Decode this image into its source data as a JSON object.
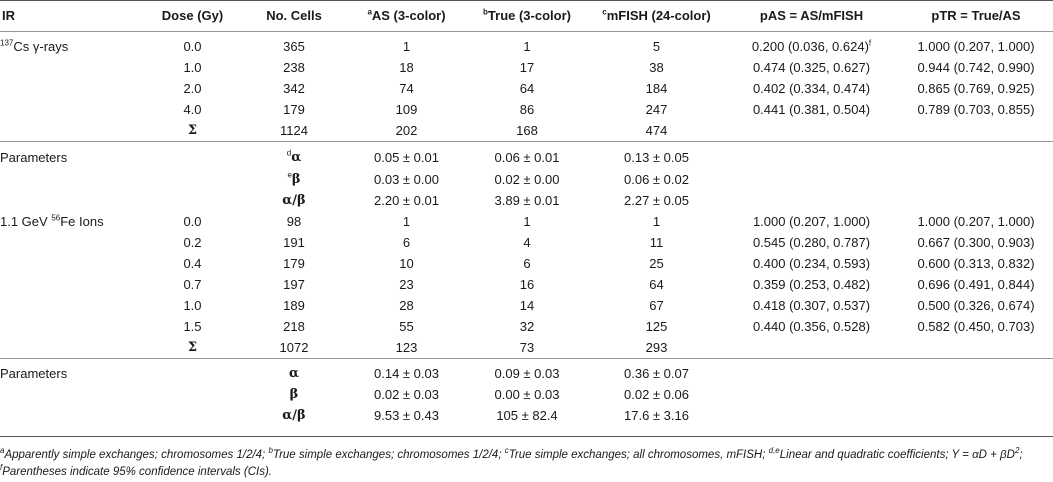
{
  "headers": {
    "ir": "IR",
    "dose": "Dose (Gy)",
    "cells": "No. Cells",
    "as": {
      "sup": "a",
      "label": "AS (3-color)"
    },
    "true": {
      "sup": "b",
      "label": "True (3-color)"
    },
    "mfish": {
      "sup": "c",
      "label": "mFISH (24-color)"
    },
    "pas": "pAS = AS/mFISH",
    "ptr": "pTR = True/AS"
  },
  "cs_block": {
    "label_sup": "137",
    "label": "Cs γ-rays",
    "rows": [
      {
        "dose": "0.0",
        "cells": "365",
        "as": "1",
        "true": "1",
        "mfish": "5",
        "pas": "0.200 (0.036, 0.624)",
        "pas_sup": "f",
        "ptr": "1.000 (0.207, 1.000)"
      },
      {
        "dose": "1.0",
        "cells": "238",
        "as": "18",
        "true": "17",
        "mfish": "38",
        "pas": "0.474 (0.325, 0.627)",
        "pas_sup": "",
        "ptr": "0.944 (0.742, 0.990)"
      },
      {
        "dose": "2.0",
        "cells": "342",
        "as": "74",
        "true": "64",
        "mfish": "184",
        "pas": "0.402 (0.334, 0.474)",
        "pas_sup": "",
        "ptr": "0.865 (0.769, 0.925)"
      },
      {
        "dose": "4.0",
        "cells": "179",
        "as": "109",
        "true": "86",
        "mfish": "247",
        "pas": "0.441 (0.381, 0.504)",
        "pas_sup": "",
        "ptr": "0.789 (0.703, 0.855)"
      }
    ],
    "sum": {
      "symbol": "Σ",
      "cells": "1124",
      "as": "202",
      "true": "168",
      "mfish": "474"
    },
    "params_label": "Parameters",
    "params": [
      {
        "sup": "d",
        "symbol": "α",
        "as": "0.05 ± 0.01",
        "true": "0.06 ± 0.01",
        "mfish": "0.13 ± 0.05"
      },
      {
        "sup": "e",
        "symbol": "β",
        "as": "0.03 ± 0.00",
        "true": "0.02 ± 0.00",
        "mfish": "0.06 ± 0.02"
      },
      {
        "sup": "",
        "symbol": "α/β",
        "as": "2.20 ± 0.01",
        "true": "3.89 ± 0.01",
        "mfish": "2.27 ± 0.05"
      }
    ]
  },
  "fe_block": {
    "label_pre": "1.1 GeV ",
    "label_sup": "56",
    "label": "Fe Ions",
    "rows": [
      {
        "dose": "0.0",
        "cells": "98",
        "as": "1",
        "true": "1",
        "mfish": "1",
        "pas": "1.000 (0.207, 1.000)",
        "ptr": "1.000 (0.207, 1.000)"
      },
      {
        "dose": "0.2",
        "cells": "191",
        "as": "6",
        "true": "4",
        "mfish": "11",
        "pas": "0.545 (0.280, 0.787)",
        "ptr": "0.667 (0.300, 0.903)"
      },
      {
        "dose": "0.4",
        "cells": "179",
        "as": "10",
        "true": "6",
        "mfish": "25",
        "pas": "0.400 (0.234, 0.593)",
        "ptr": "0.600 (0.313, 0.832)"
      },
      {
        "dose": "0.7",
        "cells": "197",
        "as": "23",
        "true": "16",
        "mfish": "64",
        "pas": "0.359 (0.253, 0.482)",
        "ptr": "0.696 (0.491, 0.844)"
      },
      {
        "dose": "1.0",
        "cells": "189",
        "as": "28",
        "true": "14",
        "mfish": "67",
        "pas": "0.418 (0.307, 0.537)",
        "ptr": "0.500 (0.326, 0.674)"
      },
      {
        "dose": "1.5",
        "cells": "218",
        "as": "55",
        "true": "32",
        "mfish": "125",
        "pas": "0.440 (0.356, 0.528)",
        "ptr": "0.582 (0.450, 0.703)"
      }
    ],
    "sum": {
      "symbol": "Σ",
      "cells": "1072",
      "as": "123",
      "true": "73",
      "mfish": "293"
    },
    "params_label": "Parameters",
    "params": [
      {
        "symbol": "α",
        "as": "0.14 ± 0.03",
        "true": "0.09 ± 0.03",
        "mfish": "0.36 ± 0.07"
      },
      {
        "symbol": "β",
        "as": "0.02 ± 0.03",
        "true": "0.00 ± 0.03",
        "mfish": "0.02 ± 0.06"
      },
      {
        "symbol": "α/β",
        "as": "9.53 ± 0.43",
        "true": "105 ± 82.4",
        "mfish": "17.6 ± 3.16"
      }
    ]
  },
  "footnote": {
    "a_sup": "a",
    "a": "Apparently simple exchanges; chromosomes 1/2/4; ",
    "b_sup": "b",
    "b": "True simple exchanges; chromosomes 1/2/4; ",
    "c_sup": "c",
    "c": "True simple exchanges; all chromosomes, mFISH; ",
    "de_sup": "d,e",
    "de": "Linear and quadratic coefficients; ",
    "eq_pre": "Y = αD + βD",
    "eq_sup": "2",
    "eq_post": "; ",
    "f_sup": "f",
    "f": "Parentheses indicate 95% confidence intervals (CIs)."
  }
}
